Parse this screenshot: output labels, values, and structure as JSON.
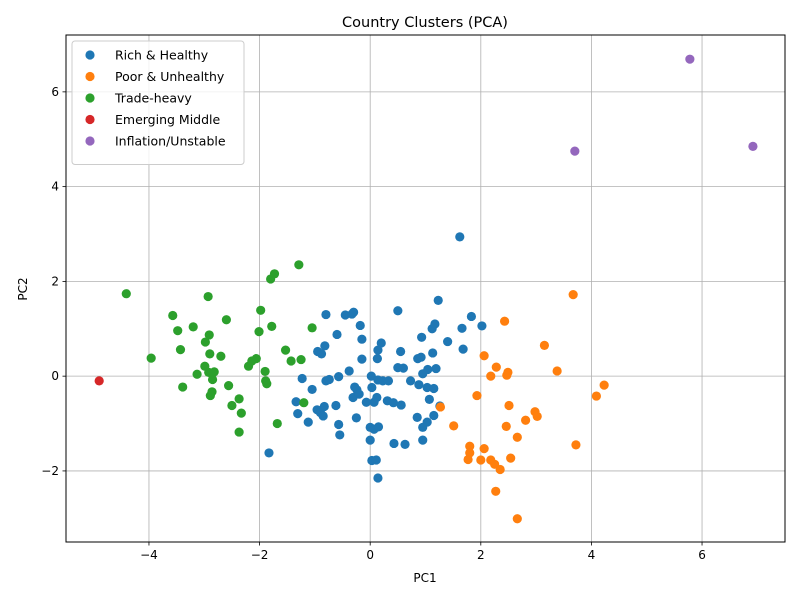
{
  "chart_data": {
    "type": "scatter",
    "title": "Country Clusters (PCA)",
    "xlabel": "PC1",
    "ylabel": "PC2",
    "xlim": [
      -5.5,
      7.5
    ],
    "ylim": [
      -3.5,
      7.2
    ],
    "xticks": [
      -4,
      -2,
      0,
      2,
      4,
      6
    ],
    "yticks": [
      -2,
      0,
      2,
      4,
      6
    ],
    "grid": true,
    "legend_position": "top-left",
    "series": [
      {
        "name": "Rich & Healthy",
        "color": "#1f77b4",
        "points": [
          [
            1.62,
            2.94
          ],
          [
            -1.83,
            -1.62
          ],
          [
            0.5,
            1.38
          ],
          [
            1.23,
            1.6
          ],
          [
            -0.3,
            1.35
          ],
          [
            -0.45,
            1.29
          ],
          [
            -0.33,
            1.31
          ],
          [
            -0.8,
            1.3
          ],
          [
            -0.18,
            1.07
          ],
          [
            1.83,
            1.26
          ],
          [
            2.02,
            1.06
          ],
          [
            1.66,
            1.01
          ],
          [
            1.12,
            1.0
          ],
          [
            1.17,
            1.1
          ],
          [
            0.93,
            0.82
          ],
          [
            -0.6,
            0.88
          ],
          [
            -0.15,
            0.78
          ],
          [
            0.2,
            0.7
          ],
          [
            1.4,
            0.73
          ],
          [
            1.68,
            0.57
          ],
          [
            0.14,
            0.55
          ],
          [
            0.55,
            0.52
          ],
          [
            -0.82,
            0.64
          ],
          [
            -0.95,
            0.52
          ],
          [
            -0.88,
            0.47
          ],
          [
            -0.15,
            0.36
          ],
          [
            0.13,
            0.37
          ],
          [
            0.86,
            0.37
          ],
          [
            0.92,
            0.4
          ],
          [
            1.13,
            0.49
          ],
          [
            0.5,
            0.18
          ],
          [
            0.6,
            0.17
          ],
          [
            1.04,
            0.14
          ],
          [
            1.19,
            0.16
          ],
          [
            -0.38,
            0.11
          ],
          [
            -1.23,
            -0.05
          ],
          [
            -0.57,
            -0.01
          ],
          [
            0.02,
            0.0
          ],
          [
            0.23,
            -0.1
          ],
          [
            0.33,
            -0.1
          ],
          [
            0.14,
            -0.08
          ],
          [
            0.73,
            -0.1
          ],
          [
            0.88,
            -0.18
          ],
          [
            0.95,
            0.05
          ],
          [
            -0.8,
            -0.1
          ],
          [
            -0.74,
            -0.07
          ],
          [
            -1.05,
            -0.28
          ],
          [
            -0.28,
            -0.23
          ],
          [
            -0.24,
            -0.29
          ],
          [
            0.03,
            -0.24
          ],
          [
            1.03,
            -0.24
          ],
          [
            1.15,
            -0.26
          ],
          [
            -0.31,
            -0.45
          ],
          [
            -0.2,
            -0.38
          ],
          [
            0.12,
            -0.45
          ],
          [
            0.07,
            -0.55
          ],
          [
            0.31,
            -0.52
          ],
          [
            0.42,
            -0.56
          ],
          [
            -0.07,
            -0.55
          ],
          [
            -0.62,
            -0.62
          ],
          [
            0.56,
            -0.61
          ],
          [
            1.07,
            -0.49
          ],
          [
            1.26,
            -0.63
          ],
          [
            -1.34,
            -0.54
          ],
          [
            -0.96,
            -0.71
          ],
          [
            -0.9,
            -0.77
          ],
          [
            -0.83,
            -0.64
          ],
          [
            -0.85,
            -0.84
          ],
          [
            -1.31,
            -0.79
          ],
          [
            -0.25,
            -0.88
          ],
          [
            0.85,
            -0.87
          ],
          [
            1.15,
            -0.83
          ],
          [
            -1.12,
            -0.97
          ],
          [
            -0.57,
            -1.02
          ],
          [
            1.03,
            -0.97
          ],
          [
            0.95,
            -1.08
          ],
          [
            0.0,
            -1.08
          ],
          [
            0.07,
            -1.12
          ],
          [
            0.15,
            -1.07
          ],
          [
            0.0,
            -1.35
          ],
          [
            -0.55,
            -1.24
          ],
          [
            0.95,
            -1.35
          ],
          [
            0.43,
            -1.42
          ],
          [
            0.63,
            -1.44
          ],
          [
            0.03,
            -1.78
          ],
          [
            0.11,
            -1.77
          ],
          [
            0.14,
            -2.15
          ]
        ]
      },
      {
        "name": "Poor & Unhealthy",
        "color": "#ff7f0e",
        "points": [
          [
            3.67,
            1.72
          ],
          [
            2.43,
            1.16
          ],
          [
            3.15,
            0.65
          ],
          [
            2.06,
            0.43
          ],
          [
            2.28,
            0.19
          ],
          [
            2.18,
            0.0
          ],
          [
            2.47,
            0.02
          ],
          [
            2.49,
            0.08
          ],
          [
            3.38,
            0.11
          ],
          [
            4.23,
            -0.19
          ],
          [
            4.09,
            -0.42
          ],
          [
            1.93,
            -0.41
          ],
          [
            2.51,
            -0.62
          ],
          [
            1.27,
            -0.65
          ],
          [
            2.98,
            -0.75
          ],
          [
            3.02,
            -0.85
          ],
          [
            2.81,
            -0.93
          ],
          [
            1.51,
            -1.05
          ],
          [
            2.46,
            -1.06
          ],
          [
            2.66,
            -1.29
          ],
          [
            3.72,
            -1.45
          ],
          [
            1.8,
            -1.48
          ],
          [
            2.06,
            -1.53
          ],
          [
            1.8,
            -1.62
          ],
          [
            2.54,
            -1.73
          ],
          [
            1.77,
            -1.76
          ],
          [
            2.0,
            -1.77
          ],
          [
            2.18,
            -1.77
          ],
          [
            2.25,
            -1.86
          ],
          [
            2.35,
            -1.97
          ],
          [
            2.27,
            -2.43
          ],
          [
            2.66,
            -3.01
          ]
        ]
      },
      {
        "name": "Trade-heavy",
        "color": "#2ca02c",
        "points": [
          [
            -1.29,
            2.35
          ],
          [
            -1.73,
            2.16
          ],
          [
            -1.8,
            2.05
          ],
          [
            -4.41,
            1.74
          ],
          [
            -2.93,
            1.68
          ],
          [
            -1.98,
            1.39
          ],
          [
            -3.57,
            1.28
          ],
          [
            -2.6,
            1.19
          ],
          [
            -3.2,
            1.04
          ],
          [
            -1.78,
            1.05
          ],
          [
            -1.05,
            1.02
          ],
          [
            -3.48,
            0.96
          ],
          [
            -2.01,
            0.94
          ],
          [
            -2.91,
            0.87
          ],
          [
            -2.98,
            0.72
          ],
          [
            -3.43,
            0.56
          ],
          [
            -1.53,
            0.55
          ],
          [
            -2.9,
            0.47
          ],
          [
            -2.7,
            0.42
          ],
          [
            -3.96,
            0.38
          ],
          [
            -1.25,
            0.35
          ],
          [
            -2.14,
            0.32
          ],
          [
            -2.06,
            0.37
          ],
          [
            -1.43,
            0.32
          ],
          [
            -2.2,
            0.21
          ],
          [
            -2.99,
            0.21
          ],
          [
            -2.82,
            0.09
          ],
          [
            -2.92,
            0.08
          ],
          [
            -1.9,
            0.1
          ],
          [
            -3.13,
            0.04
          ],
          [
            -1.89,
            -0.1
          ],
          [
            -2.85,
            -0.07
          ],
          [
            -1.87,
            -0.16
          ],
          [
            -2.56,
            -0.2
          ],
          [
            -3.39,
            -0.23
          ],
          [
            -2.86,
            -0.33
          ],
          [
            -2.89,
            -0.41
          ],
          [
            -2.37,
            -0.48
          ],
          [
            -2.5,
            -0.62
          ],
          [
            -1.2,
            -0.56
          ],
          [
            -2.33,
            -0.78
          ],
          [
            -1.68,
            -1.0
          ],
          [
            -2.37,
            -1.18
          ]
        ]
      },
      {
        "name": "Emerging Middle",
        "color": "#d62728",
        "points": [
          [
            -4.9,
            -0.1
          ]
        ]
      },
      {
        "name": "Inflation/Unstable",
        "color": "#9467bd",
        "points": [
          [
            5.78,
            6.69
          ],
          [
            3.7,
            4.75
          ],
          [
            6.92,
            4.85
          ]
        ]
      }
    ]
  }
}
